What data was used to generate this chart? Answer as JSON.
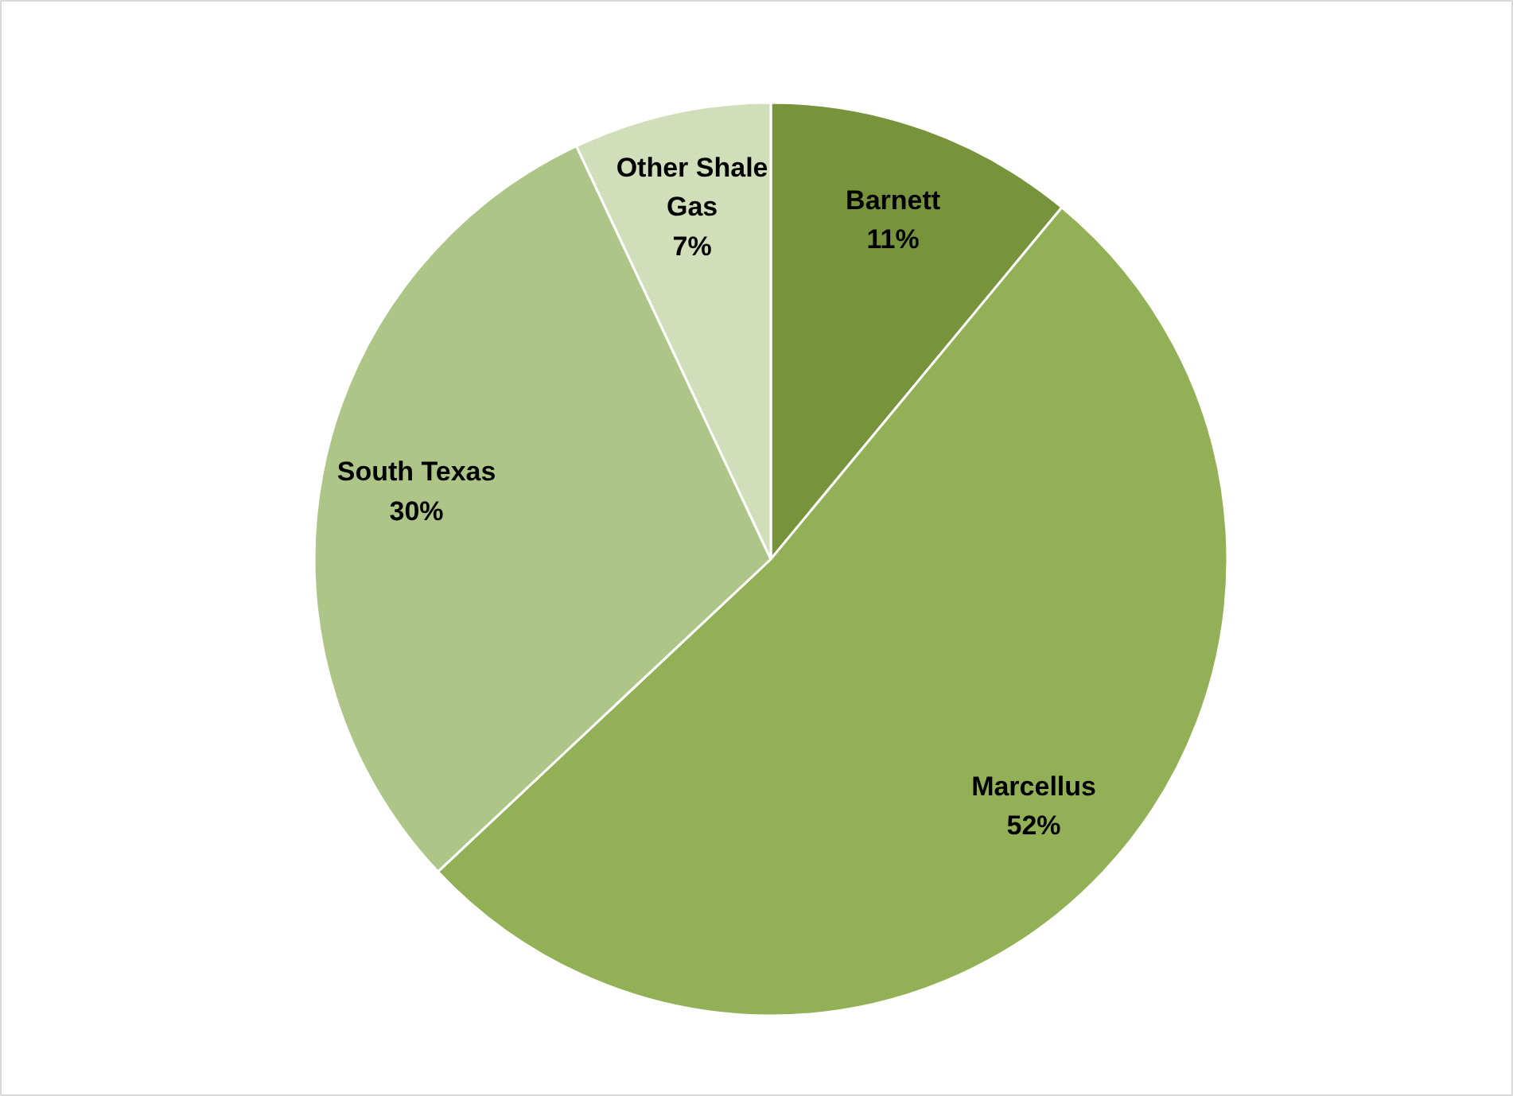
{
  "chart_data": {
    "type": "pie",
    "categories": [
      "Barnett",
      "Marcellus",
      "South Texas",
      "Other Shale Gas"
    ],
    "values": [
      11,
      52,
      30,
      7
    ],
    "colors": [
      "#77933c",
      "#92b056",
      "#adc688",
      "#d0deb9"
    ],
    "value_labels": [
      "11%",
      "52%",
      "30%",
      "7%"
    ]
  }
}
